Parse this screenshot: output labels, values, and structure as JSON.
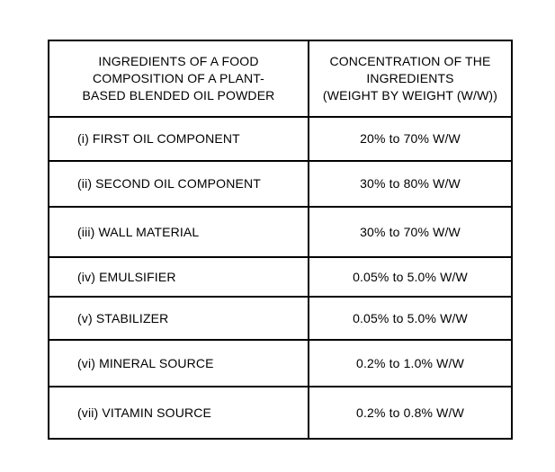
{
  "table": {
    "header": {
      "ingredients_column": [
        "INGREDIENTS OF A FOOD",
        "COMPOSITION OF A PLANT-",
        "BASED BLENDED OIL POWDER"
      ],
      "concentration_column": [
        "CONCENTRATION OF THE",
        "INGREDIENTS",
        "(WEIGHT BY WEIGHT (W/W))"
      ]
    },
    "rows": [
      {
        "ingredient": "(i) FIRST OIL COMPONENT",
        "concentration": "20% to 70% W/W"
      },
      {
        "ingredient": "(ii) SECOND OIL COMPONENT",
        "concentration": "30% to 80% W/W"
      },
      {
        "ingredient": "(iii) WALL MATERIAL",
        "concentration": "30% to 70% W/W"
      },
      {
        "ingredient": "(iv) EMULSIFIER",
        "concentration": "0.05% to 5.0% W/W"
      },
      {
        "ingredient": "(v) STABILIZER",
        "concentration": "0.05% to 5.0% W/W"
      },
      {
        "ingredient": "(vi) MINERAL SOURCE",
        "concentration": "0.2% to 1.0% W/W"
      },
      {
        "ingredient": "(vii) VITAMIN SOURCE",
        "concentration": "0.2% to 0.8% W/W"
      }
    ]
  },
  "colors": {
    "border": "#000000",
    "text": "#000000",
    "background": "#ffffff"
  }
}
